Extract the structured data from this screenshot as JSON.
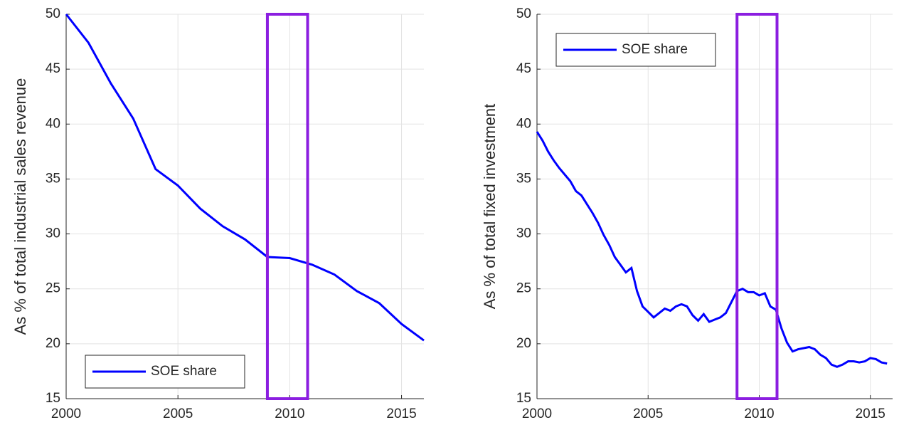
{
  "chart_data": [
    {
      "type": "line",
      "ylabel": "As % of total industrial sales revenue",
      "xlim": [
        2000,
        2016
      ],
      "ylim": [
        15,
        50
      ],
      "xticks": [
        2000,
        2005,
        2010,
        2015
      ],
      "yticks": [
        15,
        20,
        25,
        30,
        35,
        40,
        45,
        50
      ],
      "grid": true,
      "legend": "lower left",
      "highlight": {
        "xlim": [
          2009,
          2010.8
        ],
        "color": "#8b1ee0"
      },
      "x": [
        2000,
        2001,
        2002,
        2003,
        2004,
        2005,
        2006,
        2007,
        2008,
        2009,
        2010,
        2011,
        2012,
        2013,
        2014,
        2015,
        2016
      ],
      "series": [
        {
          "name": "SOE share",
          "color": "#0000ff",
          "values": [
            50,
            47.4,
            43.7,
            40.5,
            35.9,
            34.4,
            32.3,
            30.7,
            29.5,
            27.9,
            27.8,
            27.2,
            26.3,
            24.8,
            23.7,
            21.8,
            20.3
          ]
        }
      ]
    },
    {
      "type": "line",
      "ylabel": "As % of total fixed investment",
      "xlim": [
        2000,
        2016
      ],
      "ylim": [
        15,
        50
      ],
      "xticks": [
        2000,
        2005,
        2010,
        2015
      ],
      "yticks": [
        15,
        20,
        25,
        30,
        35,
        40,
        45,
        50
      ],
      "grid": true,
      "legend": "upper left",
      "highlight": {
        "xlim": [
          2009,
          2010.8
        ],
        "color": "#8b1ee0"
      },
      "x": [
        2000,
        2000.25,
        2000.5,
        2000.75,
        2001,
        2001.25,
        2001.5,
        2001.75,
        2002,
        2002.25,
        2002.5,
        2002.75,
        2003,
        2003.25,
        2003.5,
        2003.75,
        2004,
        2004.25,
        2004.5,
        2004.75,
        2005,
        2005.25,
        2005.5,
        2005.75,
        2006,
        2006.25,
        2006.5,
        2006.75,
        2007,
        2007.25,
        2007.5,
        2007.75,
        2008,
        2008.25,
        2008.5,
        2008.75,
        2009,
        2009.25,
        2009.5,
        2009.75,
        2010,
        2010.25,
        2010.5,
        2010.75,
        2011,
        2011.25,
        2011.5,
        2011.75,
        2012,
        2012.25,
        2012.5,
        2012.75,
        2013,
        2013.25,
        2013.5,
        2013.75,
        2014,
        2014.25,
        2014.5,
        2014.75,
        2015,
        2015.25,
        2015.5,
        2015.75
      ],
      "series": [
        {
          "name": "SOE share",
          "color": "#0000ff",
          "values": [
            39.3,
            38.5,
            37.5,
            36.7,
            36.0,
            35.4,
            34.8,
            33.9,
            33.5,
            32.7,
            31.9,
            31.0,
            29.9,
            29.0,
            27.9,
            27.2,
            26.5,
            26.9,
            24.8,
            23.4,
            22.9,
            22.4,
            22.8,
            23.2,
            23.0,
            23.4,
            23.6,
            23.4,
            22.6,
            22.1,
            22.7,
            22.0,
            22.2,
            22.4,
            22.8,
            23.8,
            24.8,
            25.0,
            24.7,
            24.7,
            24.4,
            24.6,
            23.4,
            23.1,
            21.4,
            20.1,
            19.3,
            19.5,
            19.6,
            19.7,
            19.5,
            19.0,
            18.7,
            18.1,
            17.9,
            18.1,
            18.4,
            18.4,
            18.3,
            18.4,
            18.7,
            18.6,
            18.3,
            18.2
          ]
        }
      ]
    }
  ]
}
